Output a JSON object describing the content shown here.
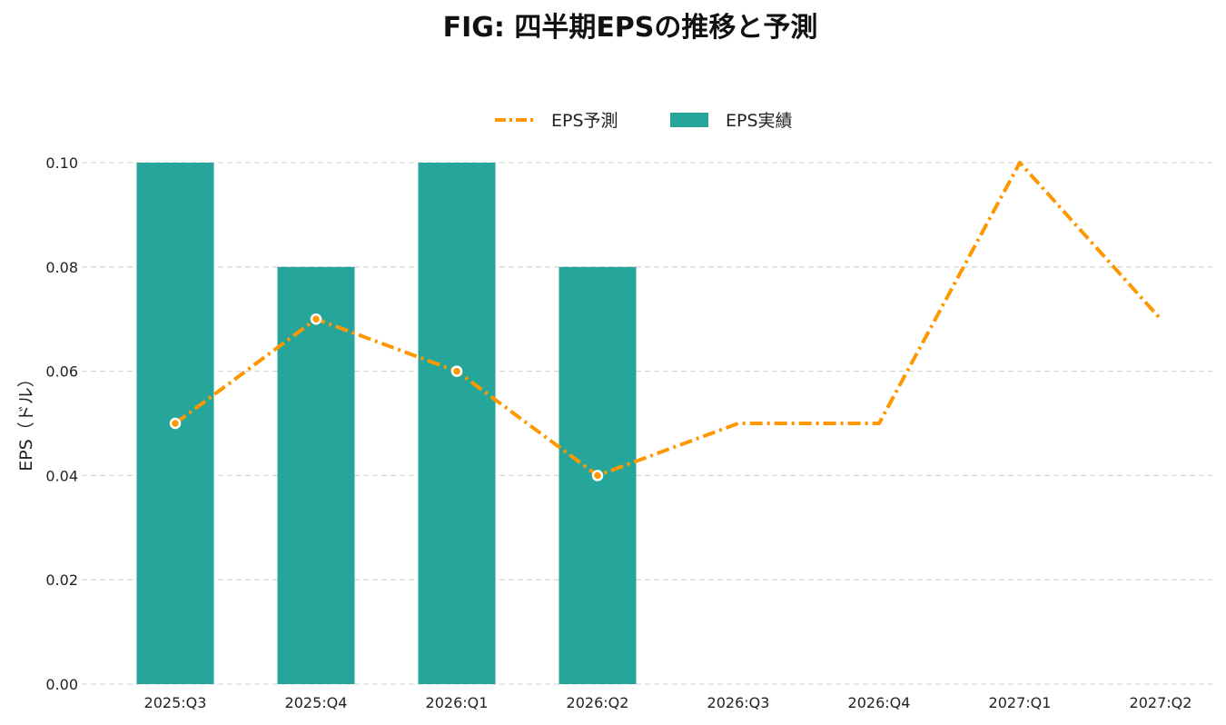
{
  "chart_data": {
    "type": "bar+line",
    "title": "FIG: 四半期EPSの推移と予測",
    "ylabel": "EPS（ドル）",
    "xlabel": "",
    "categories": [
      "2025:Q3",
      "2025:Q4",
      "2026:Q1",
      "2026:Q2",
      "2026:Q3",
      "2026:Q4",
      "2027:Q1",
      "2027:Q2"
    ],
    "ylim": [
      0,
      0.1
    ],
    "yticks": [
      "0.00",
      "0.02",
      "0.04",
      "0.06",
      "0.08",
      "0.10"
    ],
    "grid": "horizontal dashed",
    "legend_position": "top-center",
    "series": [
      {
        "name": "EPS予測",
        "type": "line",
        "style": "dash-dot",
        "color": "#ff9800",
        "values": [
          0.05,
          0.07,
          0.06,
          0.04,
          0.05,
          0.05,
          0.1,
          0.07
        ],
        "markers_on": [
          0,
          1,
          2,
          3
        ]
      },
      {
        "name": "EPS実績",
        "type": "bar",
        "color": "#26a69a",
        "values": [
          0.1,
          0.08,
          0.1,
          0.08,
          null,
          null,
          null,
          null
        ]
      }
    ]
  }
}
